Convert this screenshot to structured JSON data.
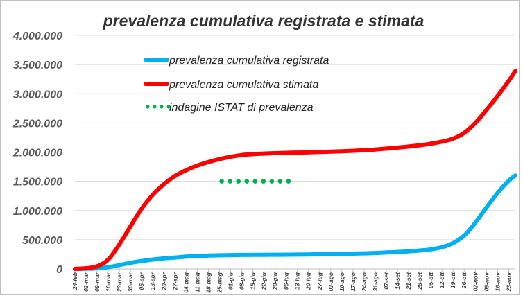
{
  "chart_data": {
    "type": "line",
    "title": "prevalenza cumulativa registrata e stimata",
    "xlabel": "",
    "ylabel": "",
    "ylim": [
      0,
      4000000
    ],
    "yticks": [
      0,
      500000,
      1000000,
      1500000,
      2000000,
      2500000,
      3000000,
      3500000,
      4000000
    ],
    "ytick_labels": [
      "0",
      "500.000",
      "1.000.000",
      "1.500.000",
      "2.000.000",
      "2.500.000",
      "3.000.000",
      "3.500.000",
      "4.000.000"
    ],
    "categories": [
      "24-feb",
      "02-mar",
      "09-mar",
      "16-mar",
      "23-mar",
      "30-mar",
      "06-apr",
      "13-apr",
      "20-apr",
      "27-apr",
      "04-mag",
      "11-mag",
      "18-mag",
      "25-mag",
      "01-giu",
      "08-giu",
      "15-giu",
      "22-giu",
      "29-giu",
      "06-lug",
      "13-lug",
      "20-lug",
      "27-lug",
      "03-ago",
      "10-ago",
      "17-ago",
      "24-ago",
      "31-ago",
      "07-set",
      "14-set",
      "21-set",
      "28-set",
      "05-ott",
      "12-ott",
      "19-ott",
      "26-ott",
      "02-nov",
      "09-nov",
      "16-nov",
      "23-nov"
    ],
    "x_end": 39.6,
    "grid": true,
    "legend_position": "top-center",
    "series": [
      {
        "name": "prevalenza cumulativa registrata",
        "color": "#00b0f0",
        "x": [
          0,
          1,
          2,
          3,
          4,
          5,
          6,
          7,
          8,
          9,
          10,
          11,
          12,
          13,
          14,
          15,
          16,
          17,
          18,
          19,
          20,
          21,
          22,
          23,
          24,
          25,
          26,
          27,
          28,
          29,
          30,
          31,
          32,
          33,
          34,
          35,
          36,
          37,
          38,
          39,
          39.6
        ],
        "values": [
          0,
          2000,
          9000,
          30000,
          65000,
          105000,
          135000,
          160000,
          180000,
          195000,
          210000,
          220000,
          228000,
          233000,
          236000,
          238000,
          240000,
          241000,
          242000,
          243000,
          245000,
          247000,
          250000,
          253000,
          257000,
          261000,
          266000,
          272000,
          281000,
          290000,
          301000,
          314000,
          335000,
          372000,
          442000,
          570000,
          790000,
          1050000,
          1300000,
          1510000,
          1600000
        ]
      },
      {
        "name": "prevalenza cumulativa stimata",
        "color": "#ff0000",
        "x": [
          0,
          1,
          2,
          3,
          4,
          5,
          6,
          7,
          8,
          9,
          10,
          11,
          12,
          13,
          14,
          15,
          16,
          17,
          18,
          19,
          20,
          21,
          22,
          23,
          24,
          25,
          26,
          27,
          28,
          29,
          30,
          31,
          32,
          33,
          34,
          35,
          36,
          37,
          38,
          39,
          39.6
        ],
        "values": [
          0,
          12000,
          45000,
          160000,
          420000,
          730000,
          1030000,
          1270000,
          1450000,
          1590000,
          1690000,
          1770000,
          1830000,
          1880000,
          1920000,
          1950000,
          1965000,
          1975000,
          1982000,
          1988000,
          1993000,
          1998000,
          2003000,
          2008000,
          2015000,
          2023000,
          2033000,
          2045000,
          2060000,
          2077000,
          2096000,
          2118000,
          2145000,
          2180000,
          2230000,
          2330000,
          2500000,
          2720000,
          2960000,
          3220000,
          3390000
        ]
      },
      {
        "name": "indagine ISTAT di prevalenza",
        "color": "#00b050",
        "style": "dots",
        "x": [
          13.2,
          13.95,
          14.7,
          15.45,
          16.2,
          16.95,
          17.7,
          18.45,
          19.2
        ],
        "values": [
          1500000,
          1500000,
          1500000,
          1500000,
          1500000,
          1500000,
          1500000,
          1500000,
          1500000
        ]
      }
    ]
  }
}
